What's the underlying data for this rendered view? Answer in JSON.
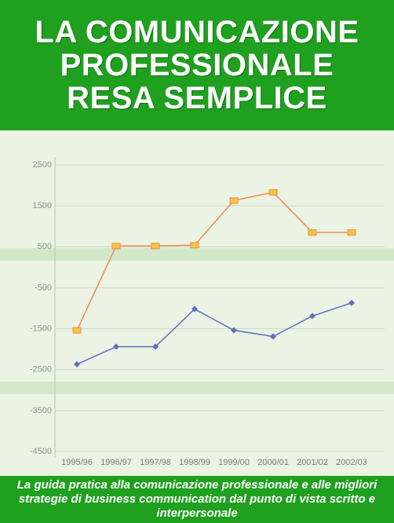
{
  "header": {
    "title": [
      "LA COMUNICAZIONE",
      "PROFESSIONALE",
      "RESA SEMPLICE"
    ]
  },
  "chart_data": {
    "type": "line",
    "categories": [
      "1995/96",
      "1996/97",
      "1997/98",
      "1998/99",
      "1999/00",
      "2000/01",
      "2001/02",
      "2002/03"
    ],
    "series": [
      {
        "color": "#f08a4b",
        "values": [
          -1540,
          520,
          520,
          540,
          1630,
          1830,
          850,
          850
        ]
      },
      {
        "color": "#5a6fc0",
        "values": [
          -2370,
          -1940,
          -1940,
          -1020,
          -1540,
          -1690,
          -1190,
          -870
        ]
      }
    ],
    "ylim": [
      -4500,
      2500
    ],
    "yticks": [
      2500,
      1500,
      500,
      -500,
      -1500,
      -2500,
      -3500,
      -4500
    ],
    "grid": true
  },
  "footer": {
    "text": "La guida pratica alla comunicazione professionale e alle migliori strategie di business communication dal punto di vista scritto e interpersonale"
  }
}
